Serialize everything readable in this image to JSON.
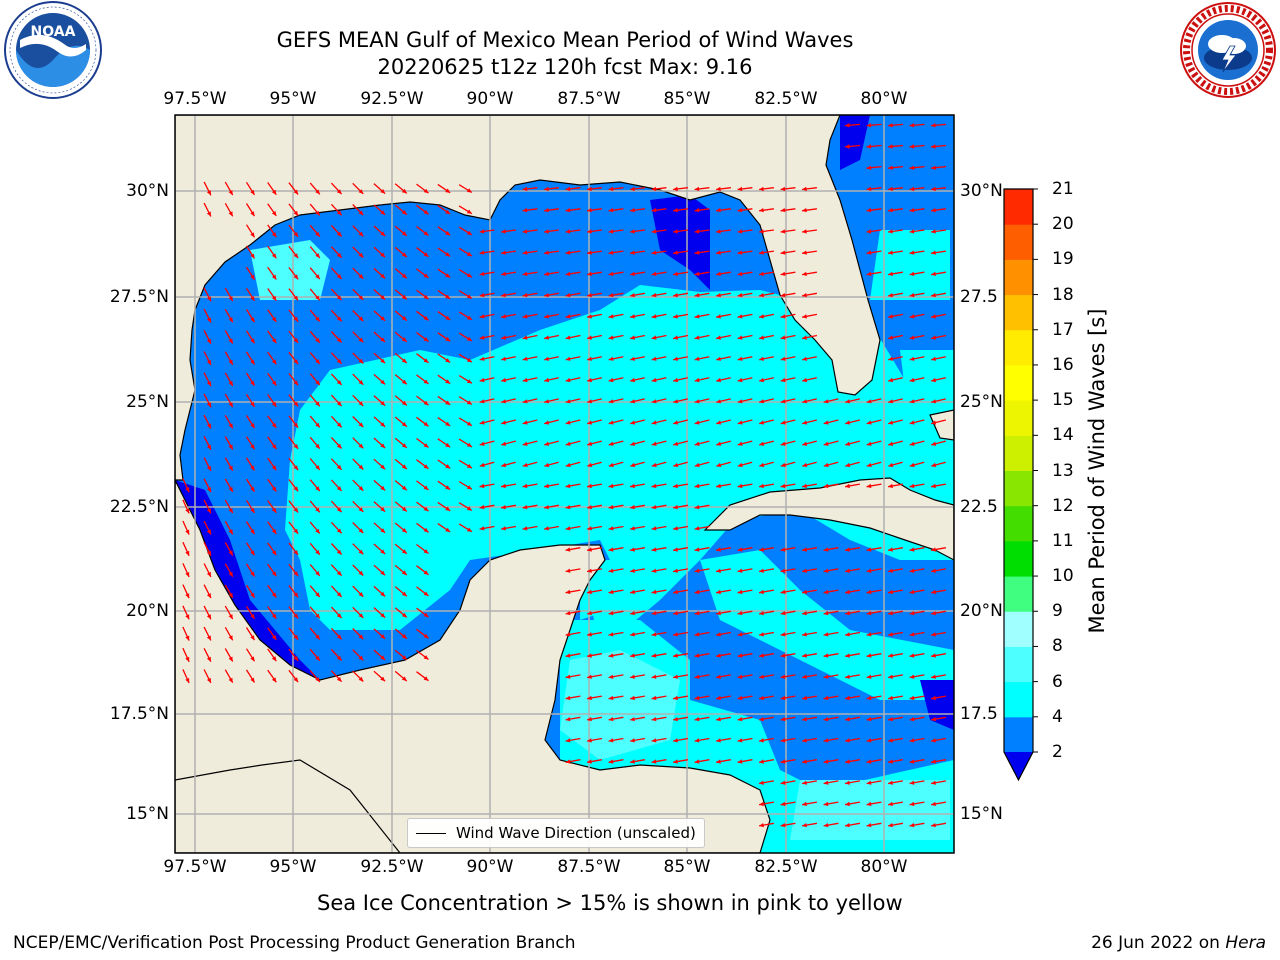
{
  "header": {
    "title_line1": "GEFS MEAN Gulf of Mexico Mean Period of Wind Waves",
    "title_line2": "20220625 t12z 120h fcst   Max: 9.16"
  },
  "map": {
    "lon_labels": [
      "97.5°W",
      "95°W",
      "92.5°W",
      "90°W",
      "87.5°W",
      "85°W",
      "82.5°W",
      "80°W"
    ],
    "lat_labels": [
      "30°N",
      "27.5°N",
      "25°N",
      "22.5°N",
      "20°N",
      "17.5°N",
      "15°N"
    ],
    "lat_labels_right": [
      "30°N",
      "27.5",
      "25°N",
      "22.5",
      "20°N",
      "17.5",
      "15°N"
    ],
    "extent": {
      "lon_min": -98.0,
      "lon_max": -78.2,
      "lat_min": 14.0,
      "lat_max": 31.7
    },
    "colors": {
      "land": "#efecdc",
      "coast": "#000000",
      "grid": "#b0b0b0",
      "arrow": "#ff0000"
    },
    "legend_label": "Wind Wave Direction (unscaled)"
  },
  "colorbar": {
    "title": "Mean Period of Wind Waves [s]",
    "tick_labels": [
      "2",
      "4",
      "6",
      "8",
      "9",
      "10",
      "11",
      "12",
      "13",
      "14",
      "15",
      "16",
      "17",
      "18",
      "19",
      "20",
      "21"
    ],
    "colors": [
      "#0080ff",
      "#00ffff",
      "#4dffff",
      "#a0ffff",
      "#40ff80",
      "#00dd00",
      "#44dd00",
      "#88e600",
      "#ccf000",
      "#eef500",
      "#ffff00",
      "#ffec00",
      "#ffc000",
      "#ff9000",
      "#ff5e00",
      "#ff2a00"
    ],
    "under_color": "#0000ee"
  },
  "chart_data": {
    "type": "heatmap",
    "title": "GEFS MEAN Gulf of Mexico Mean Period of Wind Waves",
    "subtitle": "20220625 t12z 120h fcst   Max: 9.16",
    "xlabel": "",
    "ylabel": "",
    "xlim": [
      -98.0,
      -78.2
    ],
    "ylim": [
      14.0,
      31.7
    ],
    "x_ticks": [
      "97.5°W",
      "95°W",
      "92.5°W",
      "90°W",
      "87.5°W",
      "85°W",
      "82.5°W",
      "80°W"
    ],
    "y_ticks": [
      "30°N",
      "27.5°N",
      "25°N",
      "22.5°N",
      "20°N",
      "17.5°N",
      "15°N"
    ],
    "colorbar_label": "Mean Period of Wind Waves [s]",
    "levels": [
      2,
      4,
      6,
      8,
      9,
      10,
      11,
      12,
      13,
      14,
      15,
      16,
      17,
      18,
      19,
      20,
      21
    ],
    "max_value": 9.16,
    "grid": true,
    "legend": "bottom-center"
  },
  "footer": {
    "ice_note": "Sea Ice Concentration > 15% is shown in pink to yellow",
    "credit_left": "NCEP/EMC/Verification Post Processing Product Generation Branch",
    "credit_date": "26 Jun 2022 on",
    "credit_machine": "Hera"
  }
}
